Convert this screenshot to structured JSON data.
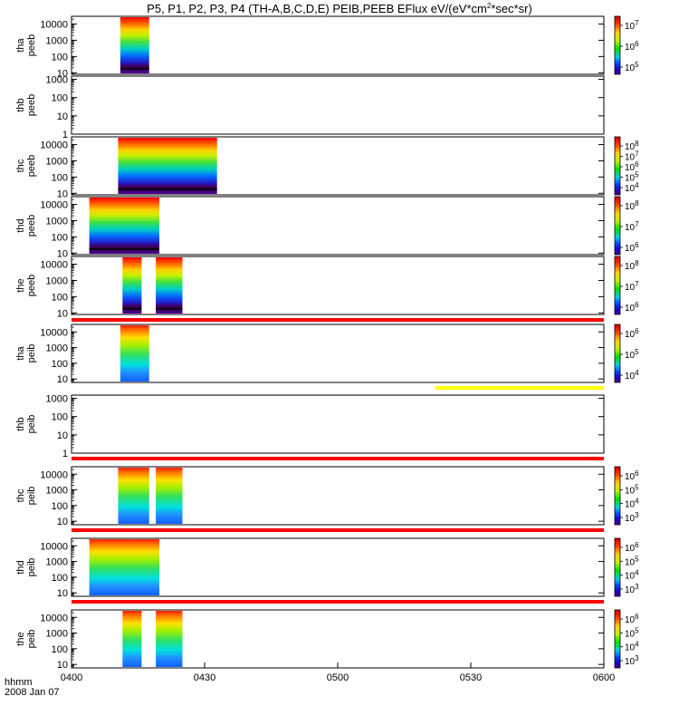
{
  "chart_data": {
    "type": "heatmap",
    "title": "P5, P1, P2, P3, P4 (TH-A,B,C,D,E) PEIB,PEEB EFlux eV/(eV*cm^2*sec*sr)",
    "title_parts": {
      "main": "P5, P1, P2, P3, P4 (TH-A,B,C,D,E) PEIB,PEEB EFlux eV/(eV*cm",
      "sup": "2",
      "tail": "*sec*sr)"
    },
    "x_axis": {
      "label": "hhmm",
      "date": "2008 Jan 07",
      "range": [
        "04:00",
        "06:00"
      ],
      "range_minutes": [
        240,
        360
      ],
      "ticks": [
        {
          "minute": 240,
          "label": "0400"
        },
        {
          "minute": 270,
          "label": "0430"
        },
        {
          "minute": 300,
          "label": "0500"
        },
        {
          "minute": 330,
          "label": "0530"
        },
        {
          "minute": 360,
          "label": "0600"
        }
      ]
    },
    "panels": [
      {
        "probe": "tha",
        "product": "peeb",
        "ylabel_line1": "tha",
        "ylabel_line2": "peeb",
        "yticks": [
          "10000",
          "1000",
          "100",
          "10"
        ],
        "ylim": [
          8,
          30000
        ],
        "colorbar": {
          "labels": [
            "10^7",
            "10^6",
            "10^5"
          ],
          "range": [
            "10^5",
            "10^8"
          ]
        },
        "data_intervals": [
          [
            251.0,
            257.5
          ]
        ],
        "spacecraft_potential_line": true,
        "species": "electron"
      },
      {
        "probe": "thb",
        "product": "peeb",
        "ylabel_line1": "thb",
        "ylabel_line2": "peeb",
        "yticks": [
          "1000",
          "100",
          "10",
          "1"
        ],
        "ylim": [
          1,
          1500
        ],
        "colorbar": null,
        "data_intervals": [],
        "species": "electron"
      },
      {
        "probe": "thc",
        "product": "peeb",
        "ylabel_line1": "thc",
        "ylabel_line2": "peeb",
        "yticks": [
          "10000",
          "1000",
          "100",
          "10"
        ],
        "ylim": [
          8,
          30000
        ],
        "colorbar": {
          "labels": [
            "10^8",
            "10^7",
            "10^6",
            "10^5",
            "10^4"
          ],
          "range": [
            "10^4",
            "10^8"
          ]
        },
        "data_intervals": [
          [
            250.5,
            272.8
          ]
        ],
        "spacecraft_potential_line": true,
        "species": "electron"
      },
      {
        "probe": "thd",
        "product": "peeb",
        "ylabel_line1": "thd",
        "ylabel_line2": "peeb",
        "yticks": [
          "10000",
          "1000",
          "100",
          "10"
        ],
        "ylim": [
          8,
          30000
        ],
        "colorbar": {
          "labels": [
            "10^8",
            "10^7",
            "10^6"
          ],
          "range": [
            "10^5",
            "10^8"
          ]
        },
        "data_intervals": [
          [
            244.0,
            259.8
          ]
        ],
        "spacecraft_potential_line": true,
        "species": "electron"
      },
      {
        "probe": "the",
        "product": "peeb",
        "ylabel_line1": "the",
        "ylabel_line2": "peeb",
        "yticks": [
          "10000",
          "1000",
          "100",
          "10"
        ],
        "ylim": [
          8,
          30000
        ],
        "colorbar": {
          "labels": [
            "10^8",
            "10^7",
            "10^6"
          ],
          "range": [
            "10^5",
            "10^8"
          ]
        },
        "data_intervals": [
          [
            251.5,
            255.8
          ],
          [
            259.0,
            265.0
          ]
        ],
        "spacecraft_potential_line": true,
        "species": "electron"
      },
      {
        "probe": "tha",
        "product": "peib",
        "ylabel_line1": "tha",
        "ylabel_line2": "peib",
        "yticks": [
          "10000",
          "1000",
          "100",
          "10"
        ],
        "ylim": [
          6,
          30000
        ],
        "colorbar": {
          "labels": [
            "10^6",
            "10^5",
            "10^4"
          ],
          "range": [
            "10^3",
            "10^6"
          ]
        },
        "data_intervals": [
          [
            251.0,
            257.5
          ]
        ],
        "species": "ion"
      },
      {
        "probe": "thb",
        "product": "peib",
        "ylabel_line1": "thb",
        "ylabel_line2": "peib",
        "yticks": [
          "1000",
          "100",
          "10",
          "1"
        ],
        "ylim": [
          1,
          1500
        ],
        "colorbar": null,
        "data_intervals": [],
        "species": "ion"
      },
      {
        "probe": "thc",
        "product": "peib",
        "ylabel_line1": "thc",
        "ylabel_line2": "peib",
        "yticks": [
          "10000",
          "1000",
          "100",
          "10"
        ],
        "ylim": [
          6,
          30000
        ],
        "colorbar": {
          "labels": [
            "10^6",
            "10^5",
            "10^4",
            "10^3"
          ],
          "range": [
            "10^3",
            "10^6"
          ]
        },
        "data_intervals": [
          [
            250.5,
            257.5
          ],
          [
            259.0,
            265.0
          ]
        ],
        "species": "ion"
      },
      {
        "probe": "thd",
        "product": "peib",
        "ylabel_line1": "thd",
        "ylabel_line2": "peib",
        "yticks": [
          "10000",
          "1000",
          "100",
          "10"
        ],
        "ylim": [
          6,
          30000
        ],
        "colorbar": {
          "labels": [
            "10^6",
            "10^5",
            "10^4",
            "10^3"
          ],
          "range": [
            "10^3",
            "10^6"
          ]
        },
        "data_intervals": [
          [
            244.0,
            259.8
          ]
        ],
        "species": "ion"
      },
      {
        "probe": "the",
        "product": "peib",
        "ylabel_line1": "the",
        "ylabel_line2": "peib",
        "yticks": [
          "10000",
          "1000",
          "100",
          "10"
        ],
        "ylim": [
          6,
          30000
        ],
        "colorbar": {
          "labels": [
            "10^6",
            "10^5",
            "10^4",
            "10^3"
          ],
          "range": [
            "10^3",
            "10^6"
          ]
        },
        "data_intervals": [
          [
            251.5,
            255.8
          ],
          [
            259.0,
            265.0
          ]
        ],
        "species": "ion"
      }
    ],
    "flag_bars": [
      {
        "after_panel": 4,
        "color": "#ff0000",
        "extent_minutes": [
          240,
          360
        ]
      },
      {
        "after_panel": 5,
        "color": "#ffff00",
        "extent_minutes": [
          322,
          360
        ]
      },
      {
        "after_panel": 6,
        "color": "#ff0000",
        "extent_minutes": [
          240,
          360
        ]
      },
      {
        "after_panel": 7,
        "color": "#ff0000",
        "extent_minutes": [
          240,
          360
        ]
      },
      {
        "after_panel": 8,
        "color": "#ff0000",
        "extent_minutes": [
          240,
          360
        ]
      }
    ],
    "colormap": "rainbow (purple-blue-cyan-green-yellow-red)"
  }
}
